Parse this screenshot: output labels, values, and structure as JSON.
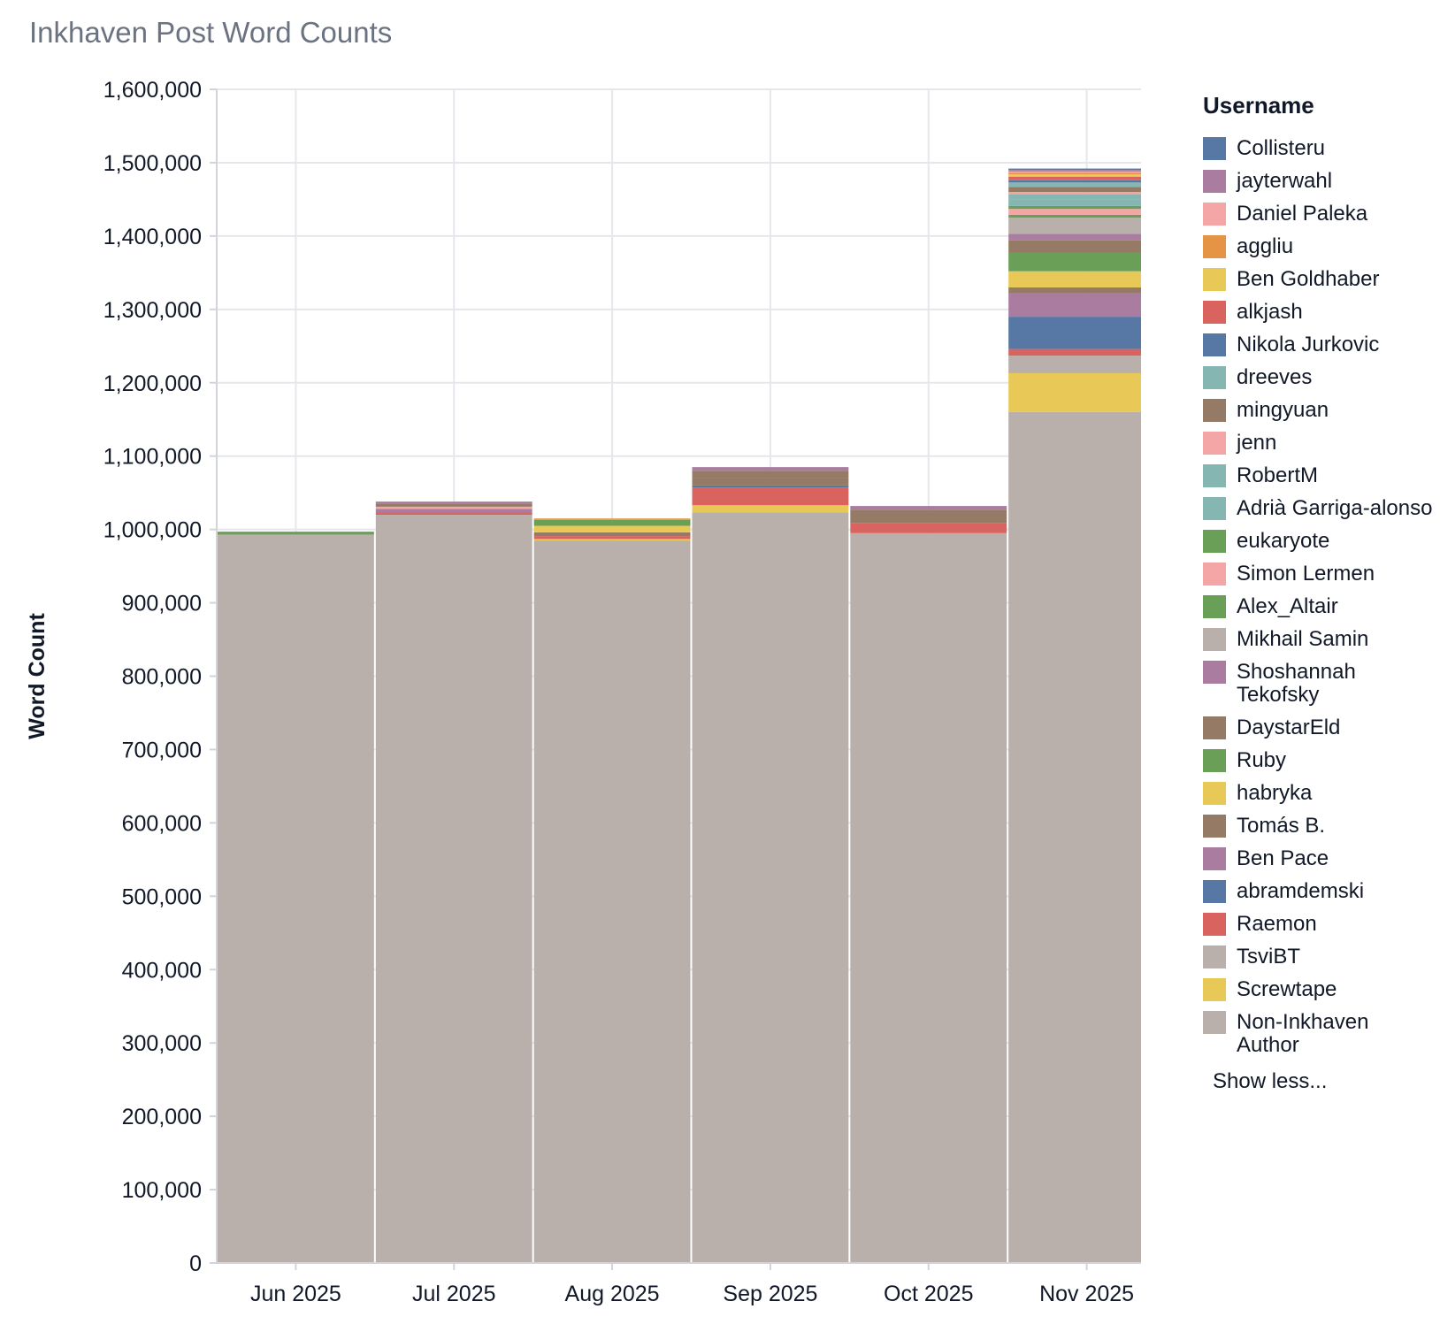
{
  "title": "Inkhaven Post Word Counts",
  "chart_data": {
    "type": "bar",
    "stacked": true,
    "title": "Inkhaven Post Word Counts",
    "xlabel": "",
    "ylabel": "Word Count",
    "ylim": [
      0,
      1600000
    ],
    "yticks": [
      0,
      100000,
      200000,
      300000,
      400000,
      500000,
      600000,
      700000,
      800000,
      900000,
      1000000,
      1100000,
      1200000,
      1300000,
      1400000,
      1500000,
      1600000
    ],
    "ytick_labels": [
      "0",
      "100,000",
      "200,000",
      "300,000",
      "400,000",
      "500,000",
      "600,000",
      "700,000",
      "800,000",
      "900,000",
      "1,000,000",
      "1,100,000",
      "1,200,000",
      "1,300,000",
      "1,400,000",
      "1,500,000",
      "1,600,000"
    ],
    "categories": [
      "Jun 2025",
      "Jul 2025",
      "Aug 2025",
      "Sep 2025",
      "Oct 2025",
      "Nov 2025"
    ],
    "grid": true,
    "legend_position": "right",
    "legend_title": "Username",
    "legend_toggle": "Show less...",
    "series": [
      {
        "name": "Non-Inkhaven Author",
        "color": "#b9afab",
        "values": [
          993000,
          1020000,
          985000,
          1023000,
          995000,
          1160000
        ]
      },
      {
        "name": "Screwtape",
        "color": "#e8c957",
        "values": [
          0,
          0,
          2000,
          10000,
          0,
          53000
        ]
      },
      {
        "name": "TsviBT",
        "color": "#b9afab",
        "values": [
          0,
          0,
          0,
          0,
          0,
          24000
        ]
      },
      {
        "name": "Raemon",
        "color": "#d9635f",
        "values": [
          0,
          3000,
          4000,
          24000,
          14000,
          9000
        ]
      },
      {
        "name": "abramdemski",
        "color": "#5778a4",
        "values": [
          0,
          0,
          0,
          3000,
          0,
          44000
        ]
      },
      {
        "name": "Ben Pace",
        "color": "#a97ca0",
        "values": [
          0,
          5000,
          0,
          0,
          0,
          32000
        ]
      },
      {
        "name": "Tomás B.",
        "color": "#957a65",
        "values": [
          0,
          0,
          5000,
          0,
          0,
          8000
        ]
      },
      {
        "name": "habryka",
        "color": "#e8c957",
        "values": [
          0,
          0,
          9000,
          0,
          0,
          22000
        ]
      },
      {
        "name": "Ruby",
        "color": "#6a9f58",
        "values": [
          4000,
          0,
          8000,
          0,
          0,
          25000
        ]
      },
      {
        "name": "DaystarEld",
        "color": "#957a65",
        "values": [
          0,
          0,
          0,
          10000,
          18000,
          17000
        ]
      },
      {
        "name": "Shoshannah Tekofsky",
        "color": "#a97ca0",
        "values": [
          0,
          0,
          0,
          0,
          0,
          9000
        ]
      },
      {
        "name": "Mikhail Samin",
        "color": "#b9afab",
        "values": [
          0,
          0,
          0,
          0,
          0,
          22000
        ]
      },
      {
        "name": "Alex_Altair",
        "color": "#6a9f58",
        "values": [
          0,
          0,
          0,
          0,
          0,
          4000
        ]
      },
      {
        "name": "Simon Lermen",
        "color": "#f4a5a6",
        "values": [
          0,
          0,
          0,
          0,
          0,
          8000
        ]
      },
      {
        "name": "eukaryote",
        "color": "#6a9f58",
        "values": [
          0,
          0,
          0,
          0,
          0,
          4000
        ]
      },
      {
        "name": "Adrià Garriga-alonso",
        "color": "#85b6b2",
        "values": [
          0,
          0,
          0,
          0,
          0,
          9000
        ]
      },
      {
        "name": "RobertM",
        "color": "#85b6b2",
        "values": [
          0,
          0,
          0,
          0,
          0,
          7000
        ]
      },
      {
        "name": "jenn",
        "color": "#f4a5a6",
        "values": [
          0,
          3000,
          0,
          0,
          0,
          3000
        ]
      },
      {
        "name": "mingyuan",
        "color": "#957a65",
        "values": [
          0,
          4000,
          0,
          10000,
          0,
          7000
        ]
      },
      {
        "name": "dreeves",
        "color": "#85b6b2",
        "values": [
          0,
          0,
          0,
          0,
          0,
          6000
        ]
      },
      {
        "name": "Nikola Jurkovic",
        "color": "#5778a4",
        "values": [
          0,
          0,
          0,
          0,
          0,
          3000
        ]
      },
      {
        "name": "alkjash",
        "color": "#d9635f",
        "values": [
          0,
          0,
          0,
          0,
          0,
          5000
        ]
      },
      {
        "name": "Ben Goldhaber",
        "color": "#e8c957",
        "values": [
          0,
          0,
          0,
          0,
          0,
          3000
        ]
      },
      {
        "name": "aggliu",
        "color": "#e49444",
        "values": [
          0,
          0,
          2000,
          0,
          0,
          2000
        ]
      },
      {
        "name": "Daniel Paleka",
        "color": "#f4a5a6",
        "values": [
          0,
          0,
          0,
          0,
          0,
          2000
        ]
      },
      {
        "name": "jayterwahl",
        "color": "#a97ca0",
        "values": [
          0,
          3000,
          0,
          5000,
          5000,
          2000
        ]
      },
      {
        "name": "Collisteru",
        "color": "#5778a4",
        "values": [
          0,
          0,
          0,
          0,
          0,
          2000
        ]
      }
    ]
  }
}
